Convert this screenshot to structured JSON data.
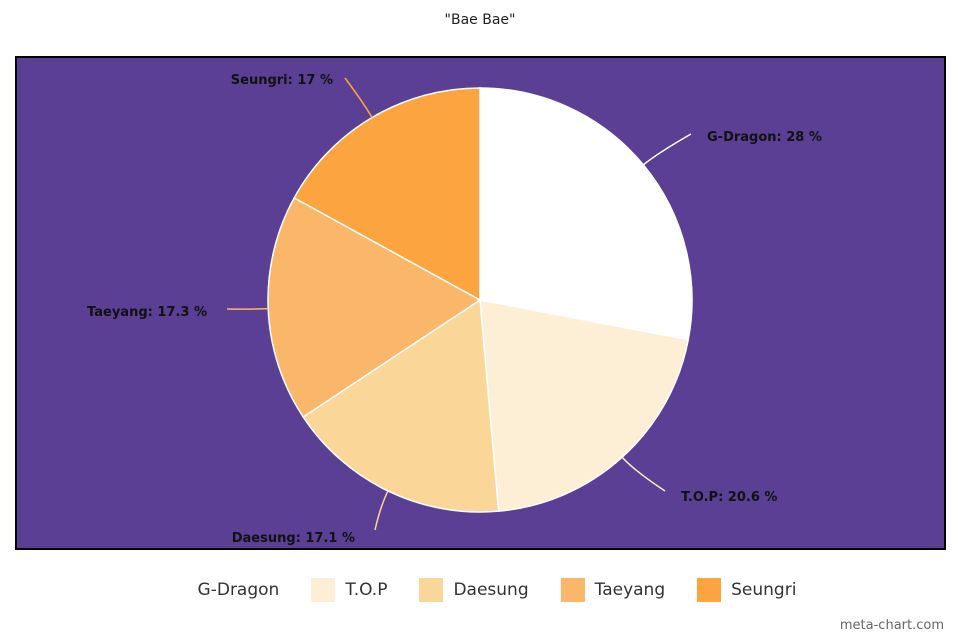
{
  "chart_data": {
    "type": "pie",
    "title": "\"Bae Bae\"",
    "categories": [
      "G-Dragon",
      "T.O.P",
      "Daesung",
      "Taeyang",
      "Seungri"
    ],
    "values": [
      28,
      20.6,
      17.1,
      17.3,
      17
    ],
    "labels": [
      "G-Dragon: 28 %",
      "T.O.P: 20.6 %",
      "Daesung: 17.1 %",
      "Taeyang: 17.3 %",
      "Seungri: 17 %"
    ],
    "colors": [
      "#ffffff",
      "#fdefd5",
      "#fbd699",
      "#fbb769",
      "#fba440"
    ],
    "start": "12 o'clock",
    "direction": "clockwise",
    "legend": "bottom",
    "background_color": "#5a3f95"
  },
  "watermark": "meta-chart.com"
}
